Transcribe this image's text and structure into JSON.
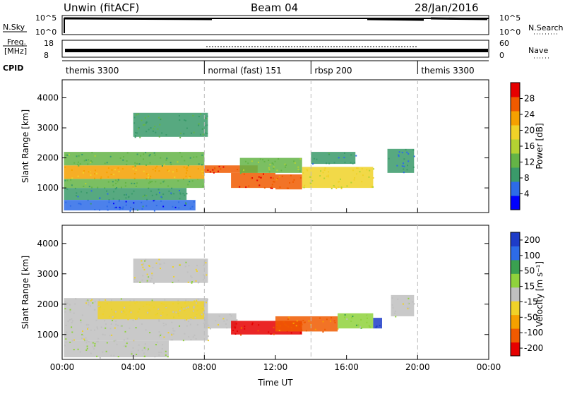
{
  "header": {
    "title": "Unwin (fitACF)",
    "beam": "Beam 04",
    "date": "28/Jan/2016"
  },
  "status_panels": {
    "nsky": {
      "label": "N.Sky",
      "ticks": [
        "10^5",
        "10^0"
      ],
      "right_ticks": [
        "10^5",
        "10^0"
      ],
      "right_label": "N.Search"
    },
    "freq": {
      "label_line1": "Freq.",
      "label_line2": "[MHz]",
      "ticks": [
        "18",
        "8"
      ],
      "right_ticks": [
        "60",
        "0"
      ],
      "right_label": "Nave"
    },
    "cpid": {
      "label": "CPID"
    }
  },
  "cpid_segments": [
    {
      "label": "themis 3300",
      "start": 0.0,
      "end": 8.0
    },
    {
      "label": "normal (fast) 151",
      "start": 8.0,
      "end": 14.0
    },
    {
      "label": "rbsp 200",
      "start": 14.0,
      "end": 20.0
    },
    {
      "label": "themis 3300",
      "start": 20.0,
      "end": 24.0
    }
  ],
  "chart_data": [
    {
      "type": "heatmap",
      "title": "",
      "xlabel": "Time UT",
      "ylabel": "Slant Range [km]",
      "xlim": [
        0,
        24
      ],
      "ylim": [
        180,
        4600
      ],
      "x_ticks": [
        "00:00",
        "04:00",
        "08:00",
        "12:00",
        "16:00",
        "20:00",
        "00:00"
      ],
      "y_ticks": [
        "1000",
        "2000",
        "3000",
        "4000"
      ],
      "colorbar": {
        "label": "Power [dB]",
        "ticks": [
          "4",
          "8",
          "12",
          "16",
          "20",
          "24",
          "28"
        ],
        "range": [
          0,
          32
        ],
        "scale": [
          "#0000ff",
          "#2d6be8",
          "#3a9a6a",
          "#64b446",
          "#b4d232",
          "#f0d228",
          "#f5a000",
          "#f05a00",
          "#e60000"
        ]
      },
      "regions": [
        {
          "x": [
            0.1,
            8.0
          ],
          "y": [
            1300,
            1750
          ],
          "value": 22
        },
        {
          "x": [
            0.1,
            8.0
          ],
          "y": [
            1000,
            1300
          ],
          "value": 12
        },
        {
          "x": [
            0.1,
            8.0
          ],
          "y": [
            1750,
            2200
          ],
          "value": 12
        },
        {
          "x": [
            0.1,
            7.0
          ],
          "y": [
            600,
            1000
          ],
          "value": 8
        },
        {
          "x": [
            0.1,
            7.5
          ],
          "y": [
            250,
            600
          ],
          "value": 5
        },
        {
          "x": [
            4.0,
            8.2
          ],
          "y": [
            2700,
            3500
          ],
          "value": 10
        },
        {
          "x": [
            8.0,
            11.0
          ],
          "y": [
            1500,
            1750
          ],
          "value": 28
        },
        {
          "x": [
            9.5,
            12.0
          ],
          "y": [
            1000,
            1500
          ],
          "value": 28
        },
        {
          "x": [
            12.0,
            13.5
          ],
          "y": [
            950,
            1450
          ],
          "value": 26
        },
        {
          "x": [
            13.5,
            17.5
          ],
          "y": [
            1000,
            1700
          ],
          "value": 18
        },
        {
          "x": [
            10.0,
            13.5
          ],
          "y": [
            1500,
            2000
          ],
          "value": 14
        },
        {
          "x": [
            14.0,
            16.5
          ],
          "y": [
            1800,
            2200
          ],
          "value": 8
        },
        {
          "x": [
            18.3,
            19.8
          ],
          "y": [
            1500,
            2300
          ],
          "value": 8
        }
      ]
    },
    {
      "type": "heatmap",
      "title": "",
      "xlabel": "Time UT",
      "ylabel": "Slant Range [km]",
      "xlim": [
        0,
        24
      ],
      "ylim": [
        180,
        4600
      ],
      "x_ticks": [
        "00:00",
        "04:00",
        "08:00",
        "12:00",
        "16:00",
        "20:00",
        "00:00"
      ],
      "y_ticks": [
        "1000",
        "2000",
        "3000",
        "4000"
      ],
      "colorbar": {
        "label": "Velocity [m s⁻¹]",
        "ticks": [
          "200",
          "100",
          "50",
          "15",
          "-15",
          "-50",
          "-100",
          "-200"
        ],
        "range": [
          -250,
          250
        ],
        "scale": [
          "#e60000",
          "#f05a00",
          "#f5a000",
          "#f0d228",
          "#c0c0c0",
          "#8fd23c",
          "#3aa050",
          "#2d6be8",
          "#1e3cc8"
        ]
      },
      "regions": [
        {
          "x": [
            0.1,
            8.2
          ],
          "y": [
            800,
            2200
          ],
          "value": 0
        },
        {
          "x": [
            2.0,
            8.0
          ],
          "y": [
            1500,
            2100
          ],
          "value": -30
        },
        {
          "x": [
            0.1,
            6.0
          ],
          "y": [
            250,
            800
          ],
          "value": 20
        },
        {
          "x": [
            4.0,
            8.2
          ],
          "y": [
            2700,
            3500
          ],
          "value": -5
        },
        {
          "x": [
            8.0,
            9.8
          ],
          "y": [
            1200,
            1700
          ],
          "value": -20
        },
        {
          "x": [
            9.5,
            13.5
          ],
          "y": [
            1000,
            1450
          ],
          "value": -200
        },
        {
          "x": [
            12.0,
            15.5
          ],
          "y": [
            1100,
            1600
          ],
          "value": -150
        },
        {
          "x": [
            15.5,
            17.5
          ],
          "y": [
            1200,
            1700
          ],
          "value": 60
        },
        {
          "x": [
            17.5,
            18.0
          ],
          "y": [
            1200,
            1550
          ],
          "value": 200
        },
        {
          "x": [
            18.5,
            19.8
          ],
          "y": [
            1600,
            2300
          ],
          "value": -5
        }
      ]
    }
  ]
}
